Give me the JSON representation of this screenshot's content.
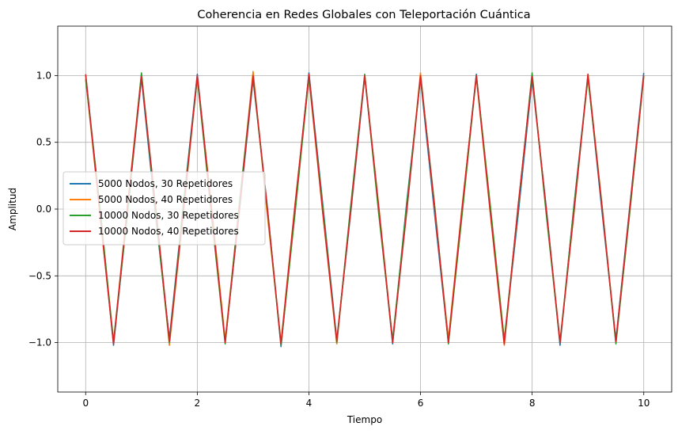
{
  "chart_data": {
    "type": "line",
    "title": "Coherencia en Redes Globales con Teleportación Cuántica",
    "xlabel": "Tiempo",
    "ylabel": "Amplitud",
    "xlim": [
      -0.5,
      10.5
    ],
    "ylim": [
      -1.37,
      1.37
    ],
    "x_ticks": [
      0,
      2,
      4,
      6,
      8,
      10
    ],
    "y_ticks": [
      -1.0,
      -0.5,
      0.0,
      0.5,
      1.0
    ],
    "x_tick_labels": [
      "0",
      "2",
      "4",
      "6",
      "8",
      "10"
    ],
    "y_tick_labels": [
      "−1.0",
      "−0.5",
      "0.0",
      "0.5",
      "1.0"
    ],
    "grid": true,
    "legend_position": "center-left",
    "x": [
      0,
      0.25,
      0.5,
      0.75,
      1,
      1.25,
      1.5,
      1.75,
      2,
      2.25,
      2.5,
      2.75,
      3,
      3.25,
      3.5,
      3.75,
      4,
      4.25,
      4.5,
      4.75,
      5,
      5.25,
      5.5,
      5.75,
      6,
      6.25,
      6.5,
      6.75,
      7,
      7.25,
      7.5,
      7.75,
      8,
      8.25,
      8.5,
      8.75,
      9,
      9.25,
      9.5,
      9.75,
      10
    ],
    "series": [
      {
        "name": "5000 Nodos, 30 Repetidores",
        "color": "#1f77b4",
        "values": [
          1.0,
          0.03,
          -1.02,
          -0.02,
          0.98,
          -0.04,
          -0.97,
          0.03,
          1.01,
          0.02,
          -0.99,
          -0.03,
          0.97,
          0.04,
          -1.03,
          -0.01,
          1.02,
          0.03,
          -0.98,
          -0.02,
          0.99,
          0.01,
          -1.01,
          0.04,
          0.98,
          -0.03,
          -1.0,
          0.02,
          1.01,
          0.0,
          -0.99,
          -0.04,
          0.97,
          0.02,
          -1.02,
          0.03,
          1.0,
          -0.01,
          -0.98,
          0.02,
          1.02
        ]
      },
      {
        "name": "5000 Nodos, 40 Repetidores",
        "color": "#ff7f0e",
        "values": [
          0.98,
          -0.02,
          -1.0,
          0.03,
          1.01,
          0.02,
          -1.02,
          -0.03,
          0.99,
          0.04,
          -0.98,
          0.01,
          1.03,
          -0.02,
          -1.0,
          0.03,
          0.98,
          -0.04,
          -1.01,
          0.02,
          1.0,
          0.03,
          -0.99,
          -0.02,
          1.02,
          0.01,
          -0.97,
          0.04,
          0.99,
          -0.03,
          -1.02,
          0.02,
          1.0,
          -0.01,
          -0.99,
          -0.03,
          1.01,
          0.04,
          -1.0,
          -0.02,
          0.99
        ]
      },
      {
        "name": "10000 Nodos, 30 Repetidores",
        "color": "#2ca02c",
        "values": [
          0.97,
          0.04,
          -0.99,
          -0.03,
          1.02,
          -0.02,
          -1.0,
          0.02,
          0.98,
          -0.03,
          -1.01,
          0.03,
          0.99,
          0.02,
          -1.02,
          -0.04,
          0.99,
          0.01,
          -1.0,
          0.03,
          1.01,
          -0.03,
          -0.98,
          0.02,
          0.99,
          0.04,
          -1.01,
          -0.02,
          1.0,
          0.03,
          -0.98,
          0.01,
          1.02,
          -0.03,
          -1.0,
          0.02,
          0.98,
          0.03,
          -1.01,
          -0.02,
          1.0
        ]
      },
      {
        "name": "10000 Nodos, 40 Repetidores",
        "color": "#d62728",
        "values": [
          1.01,
          -0.01,
          -1.01,
          0.02,
          0.99,
          0.03,
          -0.99,
          -0.02,
          1.0,
          0.01,
          -1.0,
          -0.02,
          1.0,
          0.03,
          -1.01,
          0.02,
          1.01,
          -0.03,
          -0.99,
          -0.01,
          1.0,
          0.02,
          -1.0,
          -0.03,
          1.0,
          0.02,
          -1.0,
          0.03,
          1.0,
          -0.02,
          -1.01,
          0.03,
          0.99,
          0.01,
          -1.0,
          -0.02,
          1.01,
          0.02,
          -0.99,
          0.01,
          1.0
        ]
      }
    ]
  }
}
